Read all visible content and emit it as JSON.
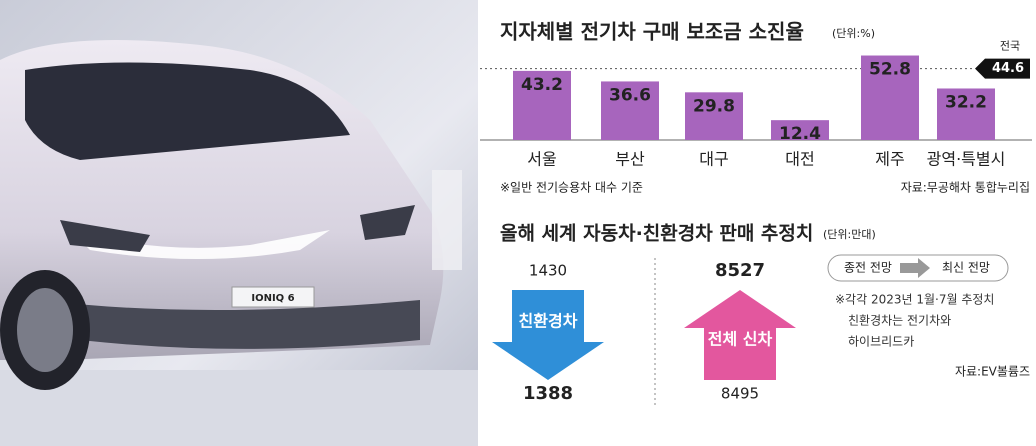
{
  "photo": {
    "badge": "IONIQ 6"
  },
  "chart_data": [
    {
      "type": "bar",
      "title": "지자체별 전기차 구매 보조금 소진율",
      "unit": "(단위:%)",
      "categories": [
        "서울",
        "부산",
        "대구",
        "대전",
        "제주",
        "광역·특별시"
      ],
      "values": [
        43.2,
        36.6,
        29.8,
        12.4,
        52.8,
        32.2
      ],
      "color": "#a765bd",
      "reference": {
        "label": "전국",
        "value": 44.6
      },
      "note": "※일반 전기승용차 대수 기준",
      "source": "자료:무공해차 통합누리집"
    },
    {
      "type": "arrow",
      "title": "올해 세계 자동차·친환경차 판매 추정치",
      "unit": "(단위:만대)",
      "series": [
        {
          "name": "친환경차",
          "from": 1430,
          "to": 1388,
          "color": "#2f8fd8"
        },
        {
          "name": "전체 신차",
          "from": 8495,
          "to": 8527,
          "color": "#e3579e"
        }
      ],
      "legend": [
        "종전 전망",
        "최신 전망"
      ],
      "notes": [
        "※각각 2023년 1월·7월 추정치",
        "친환경차는 전기차와",
        "하이브리드카"
      ],
      "source": "자료:EV볼륨즈"
    }
  ]
}
